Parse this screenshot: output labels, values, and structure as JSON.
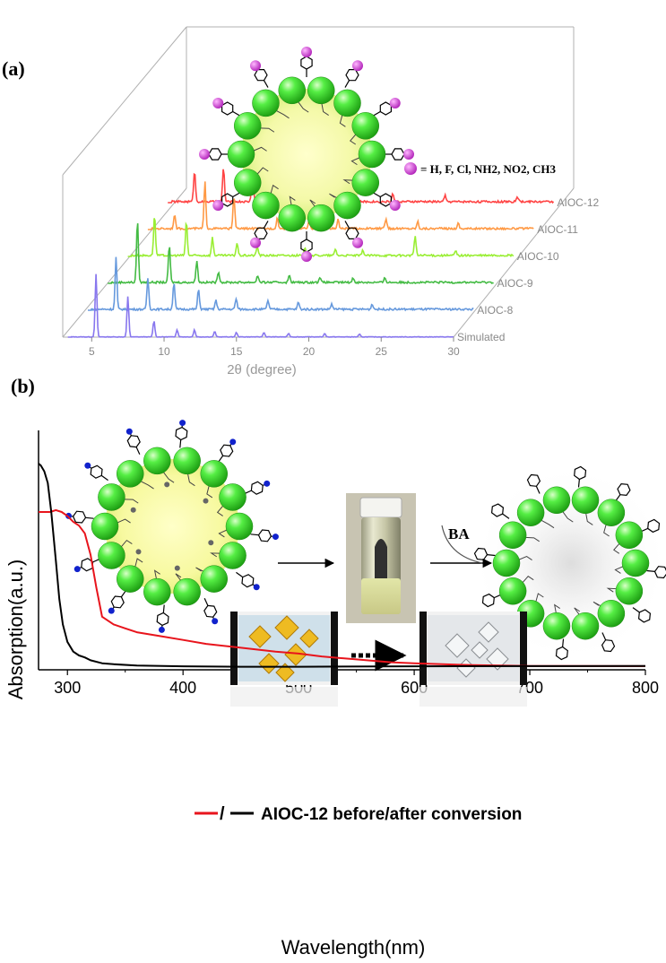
{
  "panel_a": {
    "label": "(a)",
    "legend_text": "= H, F, Cl, NH2, NO2, CH3",
    "colors": {
      "frame": "#b0b0b0",
      "sphere": "#33dd22",
      "core": "#ffff99",
      "substituent": "#cc33cc"
    }
  },
  "panel_b": {
    "label": "(b)",
    "ba_label": "BA",
    "legend_text": "AIOC-12 before/after conversion",
    "legend_sep": "/",
    "colors": {
      "before": "#e8141c",
      "after": "#000000",
      "sphere": "#33dd22",
      "n_atom": "#1122cc"
    }
  },
  "chart_data": [
    {
      "type": "line",
      "title": "",
      "xlabel": "2θ (degree)",
      "ylabel": "",
      "xlim": [
        3,
        30
      ],
      "x_ticks": [
        5,
        10,
        15,
        20,
        25,
        30
      ],
      "x_tick_labels": [
        "5",
        "10",
        "15",
        "20",
        "25",
        "30"
      ],
      "stacking": "waterfall",
      "series": [
        {
          "name": "Simulated",
          "color": "#8877ee",
          "peaks": [
            [
              5.3,
              70
            ],
            [
              7.5,
              45
            ],
            [
              9.3,
              18
            ],
            [
              10.9,
              8
            ],
            [
              12.1,
              8
            ],
            [
              13.5,
              6
            ],
            [
              15.0,
              5
            ],
            [
              16.9,
              5
            ],
            [
              18.6,
              4
            ],
            [
              21.1,
              4
            ],
            [
              23.5,
              3
            ]
          ]
        },
        {
          "name": "AIOC-8",
          "color": "#6699dd",
          "peaks": [
            [
              5.3,
              58
            ],
            [
              7.5,
              35
            ],
            [
              9.3,
              30
            ],
            [
              11.0,
              22
            ],
            [
              12.2,
              10
            ],
            [
              13.6,
              12
            ],
            [
              15.8,
              10
            ],
            [
              17.9,
              8
            ],
            [
              20.2,
              6
            ],
            [
              23.0,
              6
            ]
          ]
        },
        {
          "name": "AIOC-9",
          "color": "#44bb44",
          "peaks": [
            [
              5.4,
              70
            ],
            [
              7.6,
              42
            ],
            [
              9.5,
              25
            ],
            [
              11.0,
              12
            ],
            [
              13.7,
              8
            ],
            [
              15.9,
              8
            ],
            [
              18.0,
              6
            ],
            [
              20.3,
              5
            ],
            [
              22.5,
              5
            ]
          ]
        },
        {
          "name": "AIOC-10",
          "color": "#99ee33",
          "peaks": [
            [
              5.2,
              45
            ],
            [
              7.4,
              38
            ],
            [
              9.2,
              20
            ],
            [
              10.9,
              14
            ],
            [
              12.3,
              10
            ],
            [
              15.6,
              9
            ],
            [
              17.7,
              7
            ],
            [
              19.6,
              6
            ],
            [
              23.2,
              22
            ],
            [
              26.0,
              5
            ]
          ]
        },
        {
          "name": "AIOC-11",
          "color": "#ff9944",
          "peaks": [
            [
              5.2,
              15
            ],
            [
              7.3,
              52
            ],
            [
              9.3,
              36
            ],
            [
              12.3,
              12
            ],
            [
              14.5,
              9
            ],
            [
              16.5,
              10
            ],
            [
              19.8,
              11
            ],
            [
              22.0,
              8
            ],
            [
              24.8,
              6
            ]
          ]
        },
        {
          "name": "AIOC-12",
          "color": "#ff4444",
          "peaks": [
            [
              5.2,
              35
            ],
            [
              7.2,
              38
            ],
            [
              9.2,
              40
            ],
            [
              11.5,
              18
            ],
            [
              13.3,
              12
            ],
            [
              16.0,
              10
            ],
            [
              18.9,
              9
            ],
            [
              22.5,
              7
            ],
            [
              27.5,
              6
            ]
          ]
        }
      ]
    },
    {
      "type": "line",
      "title": "",
      "xlabel": "Wavelength(nm)",
      "ylabel": "Absorption(a.u.)",
      "xlim": [
        275,
        800
      ],
      "x_ticks": [
        300,
        400,
        500,
        600,
        700,
        800
      ],
      "x_tick_labels": [
        "300",
        "400",
        "500",
        "600",
        "700",
        "800"
      ],
      "y_ticks": "none",
      "series": [
        {
          "name": "before conversion",
          "color": "#e8141c",
          "x": [
            275,
            285,
            290,
            295,
            300,
            305,
            310,
            315,
            320,
            325,
            330,
            340,
            350,
            360,
            380,
            400,
            420,
            450,
            480,
            500,
            520,
            550,
            580,
            600,
            650,
            700,
            800
          ],
          "y": [
            0.8,
            0.8,
            0.81,
            0.8,
            0.78,
            0.75,
            0.73,
            0.69,
            0.58,
            0.41,
            0.26,
            0.22,
            0.2,
            0.18,
            0.16,
            0.14,
            0.12,
            0.1,
            0.08,
            0.07,
            0.055,
            0.04,
            0.025,
            0.02,
            0.01,
            0.006,
            0.005
          ]
        },
        {
          "name": "after conversion",
          "color": "#000000",
          "x": [
            275,
            277,
            280,
            283,
            286,
            290,
            293,
            296,
            300,
            305,
            310,
            315,
            320,
            330,
            340,
            360,
            400,
            450,
            500,
            600,
            700,
            800
          ],
          "y": [
            1.05,
            1.04,
            1.01,
            0.95,
            0.8,
            0.55,
            0.35,
            0.22,
            0.13,
            0.08,
            0.06,
            0.05,
            0.035,
            0.02,
            0.015,
            0.008,
            0.004,
            0.002,
            0.002,
            0.004,
            0.005,
            0.006
          ]
        }
      ]
    }
  ]
}
